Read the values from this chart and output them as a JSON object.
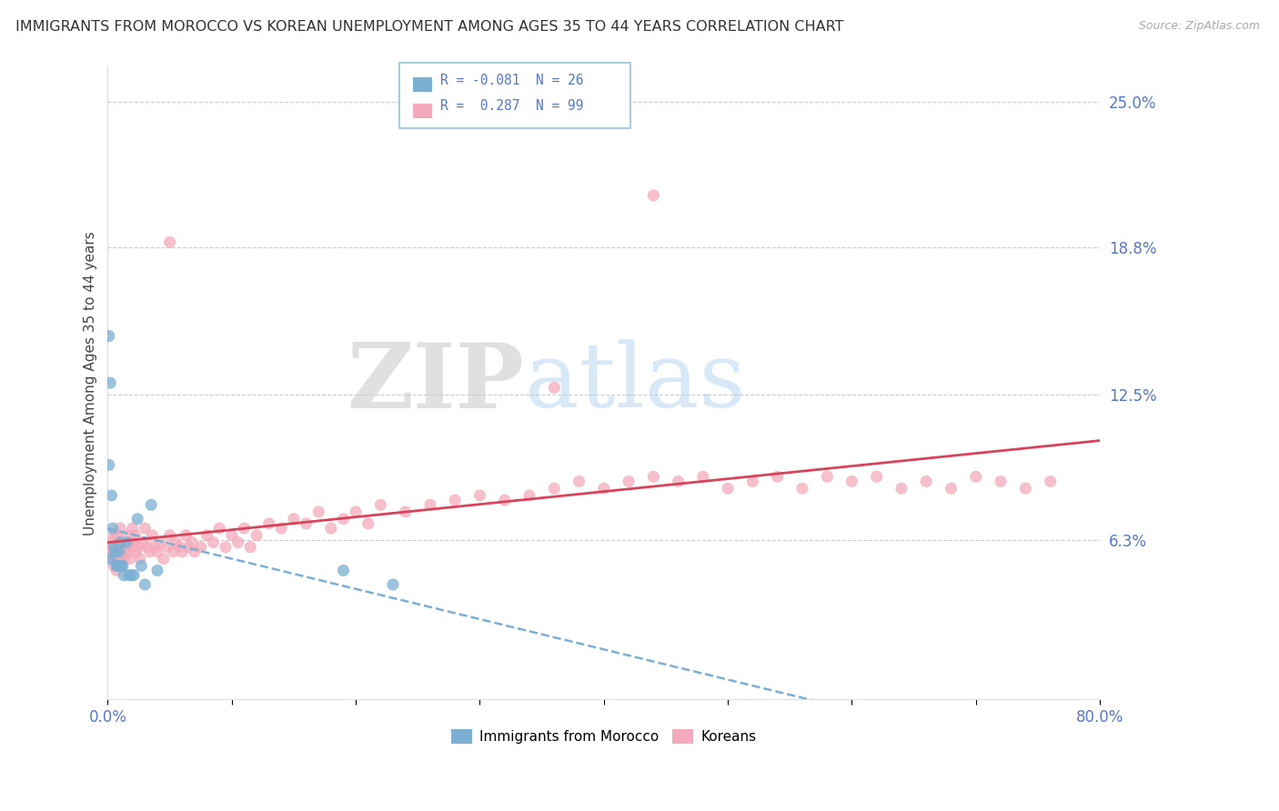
{
  "title": "IMMIGRANTS FROM MOROCCO VS KOREAN UNEMPLOYMENT AMONG AGES 35 TO 44 YEARS CORRELATION CHART",
  "source": "Source: ZipAtlas.com",
  "ylabel": "Unemployment Among Ages 35 to 44 years",
  "xlim": [
    0.0,
    0.8
  ],
  "ylim": [
    -0.005,
    0.265
  ],
  "series1_label": "Immigrants from Morocco",
  "series1_R": "-0.081",
  "series1_N": "26",
  "series1_color": "#7BAFD4",
  "series2_label": "Koreans",
  "series2_R": "0.287",
  "series2_N": "99",
  "series2_color": "#F4AABB",
  "watermark_zip": "ZIP",
  "watermark_atlas": "atlas",
  "background_color": "#FFFFFF",
  "grid_color": "#CCCCCC",
  "title_color": "#333333",
  "tick_color": "#5577CC",
  "morocco_x": [
    0.001,
    0.002,
    0.003,
    0.004,
    0.005,
    0.006,
    0.007,
    0.008,
    0.009,
    0.01,
    0.011,
    0.012,
    0.013,
    0.015,
    0.017,
    0.019,
    0.021,
    0.024,
    0.027,
    0.03,
    0.035,
    0.04,
    0.001,
    0.002,
    0.19,
    0.23
  ],
  "morocco_y": [
    0.15,
    0.13,
    0.082,
    0.068,
    0.06,
    0.058,
    0.052,
    0.052,
    0.058,
    0.062,
    0.052,
    0.052,
    0.048,
    0.062,
    0.048,
    0.048,
    0.048,
    0.072,
    0.052,
    0.044,
    0.078,
    0.05,
    0.095,
    0.055,
    0.05,
    0.044
  ],
  "korean_x": [
    0.002,
    0.003,
    0.003,
    0.004,
    0.005,
    0.005,
    0.006,
    0.006,
    0.007,
    0.007,
    0.008,
    0.009,
    0.01,
    0.01,
    0.011,
    0.011,
    0.012,
    0.013,
    0.014,
    0.015,
    0.016,
    0.017,
    0.018,
    0.019,
    0.02,
    0.021,
    0.022,
    0.023,
    0.025,
    0.026,
    0.028,
    0.03,
    0.032,
    0.034,
    0.036,
    0.038,
    0.04,
    0.042,
    0.045,
    0.048,
    0.05,
    0.053,
    0.055,
    0.058,
    0.06,
    0.063,
    0.065,
    0.068,
    0.07,
    0.075,
    0.08,
    0.085,
    0.09,
    0.095,
    0.1,
    0.105,
    0.11,
    0.115,
    0.12,
    0.13,
    0.14,
    0.15,
    0.16,
    0.17,
    0.18,
    0.19,
    0.2,
    0.21,
    0.22,
    0.24,
    0.26,
    0.28,
    0.3,
    0.32,
    0.34,
    0.36,
    0.38,
    0.4,
    0.42,
    0.44,
    0.46,
    0.48,
    0.5,
    0.52,
    0.54,
    0.56,
    0.58,
    0.6,
    0.62,
    0.64,
    0.66,
    0.68,
    0.7,
    0.72,
    0.74,
    0.76,
    0.05,
    0.36,
    0.44
  ],
  "korean_y": [
    0.06,
    0.055,
    0.062,
    0.058,
    0.052,
    0.065,
    0.055,
    0.06,
    0.05,
    0.065,
    0.058,
    0.06,
    0.055,
    0.068,
    0.052,
    0.062,
    0.058,
    0.055,
    0.06,
    0.065,
    0.06,
    0.058,
    0.055,
    0.062,
    0.068,
    0.06,
    0.065,
    0.058,
    0.06,
    0.055,
    0.062,
    0.068,
    0.06,
    0.058,
    0.065,
    0.06,
    0.058,
    0.062,
    0.055,
    0.06,
    0.065,
    0.058,
    0.062,
    0.06,
    0.058,
    0.065,
    0.06,
    0.062,
    0.058,
    0.06,
    0.065,
    0.062,
    0.068,
    0.06,
    0.065,
    0.062,
    0.068,
    0.06,
    0.065,
    0.07,
    0.068,
    0.072,
    0.07,
    0.075,
    0.068,
    0.072,
    0.075,
    0.07,
    0.078,
    0.075,
    0.078,
    0.08,
    0.082,
    0.08,
    0.082,
    0.085,
    0.088,
    0.085,
    0.088,
    0.09,
    0.088,
    0.09,
    0.085,
    0.088,
    0.09,
    0.085,
    0.09,
    0.088,
    0.09,
    0.085,
    0.088,
    0.085,
    0.09,
    0.088,
    0.085,
    0.088,
    0.19,
    0.128,
    0.21
  ]
}
